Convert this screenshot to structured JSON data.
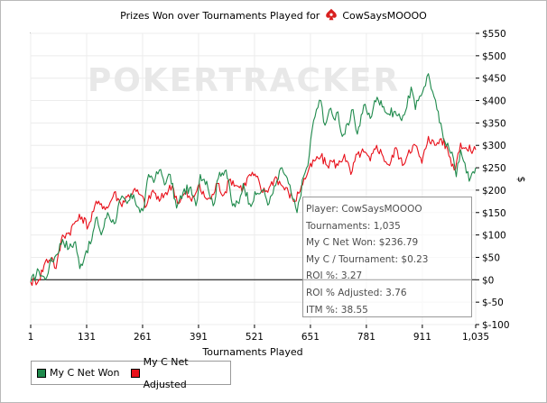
{
  "chart_data": {
    "type": "line",
    "title": "Prizes Won over Tournaments Played for",
    "title_user": "CowSaysMOOOO",
    "xlabel": "Tournaments Played",
    "ylabel": "$",
    "xlim": [
      1,
      1035
    ],
    "ylim": [
      -100,
      550
    ],
    "x_ticks": [
      1,
      131,
      261,
      391,
      521,
      651,
      781,
      911,
      1035
    ],
    "x_tick_labels": [
      "1",
      "131",
      "261",
      "391",
      "521",
      "651",
      "781",
      "911",
      "1,035"
    ],
    "y_ticks": [
      -100,
      -50,
      0,
      50,
      100,
      150,
      200,
      250,
      300,
      350,
      400,
      450,
      500,
      550
    ],
    "y_tick_labels": [
      "$-100",
      "$-50",
      "$0",
      "$50",
      "$100",
      "$150",
      "$200",
      "$250",
      "$300",
      "$350",
      "$400",
      "$450",
      "$500",
      "$550"
    ],
    "grid": true,
    "watermark": "POKERTRACKER",
    "legend_position": "bottom-left",
    "series": [
      {
        "name": "My C Net Won",
        "color": "#1f8a4c",
        "points": [
          [
            1,
            -5
          ],
          [
            20,
            20
          ],
          [
            35,
            0
          ],
          [
            45,
            35
          ],
          [
            60,
            55
          ],
          [
            75,
            90
          ],
          [
            90,
            70
          ],
          [
            105,
            85
          ],
          [
            115,
            25
          ],
          [
            130,
            65
          ],
          [
            140,
            80
          ],
          [
            155,
            140
          ],
          [
            165,
            100
          ],
          [
            180,
            150
          ],
          [
            195,
            125
          ],
          [
            210,
            180
          ],
          [
            225,
            170
          ],
          [
            240,
            190
          ],
          [
            255,
            150
          ],
          [
            265,
            165
          ],
          [
            275,
            235
          ],
          [
            290,
            225
          ],
          [
            300,
            245
          ],
          [
            315,
            215
          ],
          [
            325,
            235
          ],
          [
            340,
            160
          ],
          [
            355,
            195
          ],
          [
            370,
            205
          ],
          [
            385,
            165
          ],
          [
            395,
            235
          ],
          [
            410,
            220
          ],
          [
            425,
            165
          ],
          [
            440,
            240
          ],
          [
            455,
            245
          ],
          [
            470,
            165
          ],
          [
            485,
            170
          ],
          [
            495,
            215
          ],
          [
            510,
            170
          ],
          [
            525,
            190
          ],
          [
            540,
            200
          ],
          [
            555,
            170
          ],
          [
            570,
            210
          ],
          [
            585,
            250
          ],
          [
            600,
            215
          ],
          [
            610,
            180
          ],
          [
            620,
            150
          ],
          [
            635,
            230
          ],
          [
            645,
            255
          ],
          [
            655,
            335
          ],
          [
            665,
            380
          ],
          [
            675,
            400
          ],
          [
            685,
            345
          ],
          [
            695,
            380
          ],
          [
            705,
            360
          ],
          [
            715,
            375
          ],
          [
            725,
            320
          ],
          [
            740,
            345
          ],
          [
            750,
            380
          ],
          [
            760,
            325
          ],
          [
            775,
            390
          ],
          [
            790,
            360
          ],
          [
            800,
            400
          ],
          [
            815,
            400
          ],
          [
            830,
            370
          ],
          [
            845,
            375
          ],
          [
            860,
            360
          ],
          [
            875,
            385
          ],
          [
            885,
            430
          ],
          [
            895,
            380
          ],
          [
            905,
            410
          ],
          [
            915,
            430
          ],
          [
            925,
            460
          ],
          [
            935,
            420
          ],
          [
            945,
            380
          ],
          [
            960,
            315
          ],
          [
            970,
            305
          ],
          [
            980,
            285
          ],
          [
            990,
            230
          ],
          [
            1000,
            290
          ],
          [
            1010,
            260
          ],
          [
            1020,
            220
          ],
          [
            1035,
            250
          ]
        ]
      },
      {
        "name": "My C Net Adjusted",
        "color": "#e8101a",
        "points": [
          [
            1,
            -5
          ],
          [
            20,
            0
          ],
          [
            35,
            40
          ],
          [
            50,
            50
          ],
          [
            60,
            25
          ],
          [
            75,
            100
          ],
          [
            90,
            105
          ],
          [
            105,
            130
          ],
          [
            120,
            140
          ],
          [
            135,
            120
          ],
          [
            150,
            165
          ],
          [
            165,
            170
          ],
          [
            180,
            160
          ],
          [
            195,
            195
          ],
          [
            210,
            170
          ],
          [
            225,
            185
          ],
          [
            240,
            200
          ],
          [
            255,
            190
          ],
          [
            270,
            165
          ],
          [
            285,
            200
          ],
          [
            300,
            175
          ],
          [
            315,
            195
          ],
          [
            330,
            210
          ],
          [
            345,
            170
          ],
          [
            360,
            195
          ],
          [
            375,
            175
          ],
          [
            390,
            210
          ],
          [
            405,
            185
          ],
          [
            420,
            180
          ],
          [
            435,
            215
          ],
          [
            450,
            190
          ],
          [
            465,
            225
          ],
          [
            480,
            210
          ],
          [
            495,
            205
          ],
          [
            510,
            235
          ],
          [
            525,
            230
          ],
          [
            540,
            195
          ],
          [
            555,
            205
          ],
          [
            570,
            230
          ],
          [
            585,
            210
          ],
          [
            600,
            195
          ],
          [
            615,
            175
          ],
          [
            630,
            210
          ],
          [
            645,
            240
          ],
          [
            660,
            265
          ],
          [
            675,
            275
          ],
          [
            690,
            255
          ],
          [
            700,
            265
          ],
          [
            715,
            255
          ],
          [
            730,
            280
          ],
          [
            745,
            235
          ],
          [
            760,
            280
          ],
          [
            775,
            285
          ],
          [
            790,
            265
          ],
          [
            805,
            300
          ],
          [
            820,
            275
          ],
          [
            835,
            255
          ],
          [
            850,
            295
          ],
          [
            865,
            255
          ],
          [
            880,
            290
          ],
          [
            895,
            300
          ],
          [
            910,
            260
          ],
          [
            925,
            320
          ],
          [
            940,
            300
          ],
          [
            955,
            315
          ],
          [
            970,
            290
          ],
          [
            985,
            245
          ],
          [
            1000,
            305
          ],
          [
            1015,
            290
          ],
          [
            1035,
            290
          ]
        ]
      }
    ]
  },
  "tooltip": {
    "player": "Player: CowSaysMOOOO",
    "tournaments": "Tournaments: 1,035",
    "net_won": "My C Net Won: $236.79",
    "per_tournament": "My C / Tournament: $0.23",
    "roi": "ROI %: 3.27",
    "roi_adjusted": "ROI % Adjusted: 3.76",
    "itm": "ITM %: 38.55"
  },
  "legend": {
    "items": [
      {
        "label": "My C Net Won",
        "color": "#1f8a4c"
      },
      {
        "label": "My C Net Adjusted",
        "color": "#e8101a"
      }
    ]
  },
  "icons": {
    "title_icon": "pokertracker-spade-icon"
  }
}
